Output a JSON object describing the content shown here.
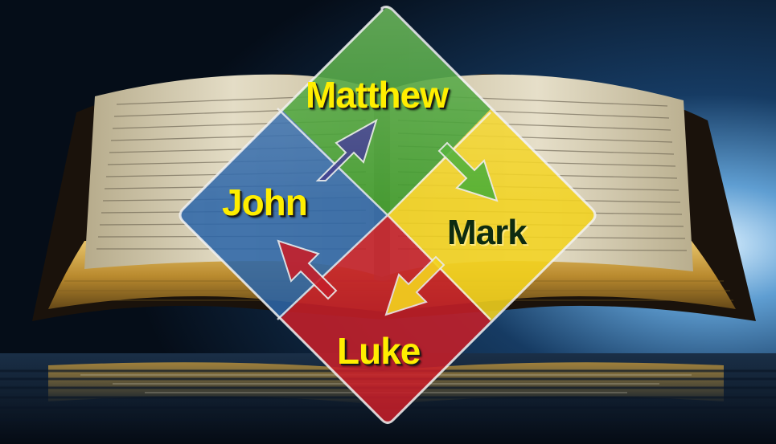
{
  "scene": {
    "background_colors": {
      "sky_dark": "#05101c",
      "sky_glow": "#bfe4ff",
      "water": "#0c1d30"
    },
    "book_colors": {
      "page": "#ddd5bd",
      "page_shadow": "#a89c7c",
      "edge_gold": "#c89a3a",
      "cover": "#1a120b"
    }
  },
  "diagram": {
    "quadrants": [
      {
        "key": "matthew",
        "label": "Matthew",
        "color": "#3c9c2a",
        "text_style": "yellow"
      },
      {
        "key": "mark",
        "label": "Mark",
        "color": "#f3d31f",
        "text_style": "dark"
      },
      {
        "key": "luke",
        "label": "Luke",
        "color": "#c51f2a",
        "text_style": "yellow"
      },
      {
        "key": "john",
        "label": "John",
        "color": "#2d66a8",
        "text_style": "yellow"
      }
    ],
    "arrow_colors": {
      "john_to_matthew": "#3d3a8c",
      "matthew_to_mark": "#3c9c2a",
      "mark_to_luke": "#f3d31f",
      "luke_to_john": "#c51f2a"
    },
    "icons": [
      "open-bible-icon",
      "water-reflection-icon",
      "cycle-arrows-icon"
    ]
  }
}
